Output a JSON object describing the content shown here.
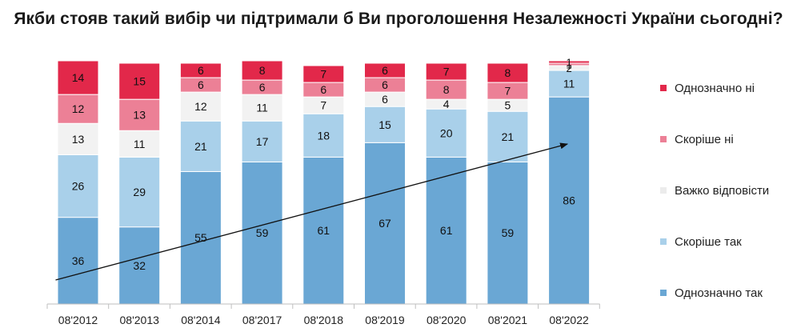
{
  "title": "Якби стояв такий вибір чи підтримали б Ви проголошення Незалежності України сьогодні?",
  "colors": {
    "axis": "#bfbfbf",
    "arrow": "#111111"
  },
  "chart_data": {
    "type": "bar",
    "stacked": true,
    "categories": [
      "08'2012",
      "08'2013",
      "08'2014",
      "08'2017",
      "08'2018",
      "08'2019",
      "08'2020",
      "08'2021",
      "08'2022"
    ],
    "series": [
      {
        "name": "Однозначно так",
        "color": "#6aa7d4",
        "values": [
          36,
          32,
          55,
          59,
          61,
          67,
          61,
          59,
          86
        ]
      },
      {
        "name": "Скоріше так",
        "color": "#a9d0ea",
        "values": [
          26,
          29,
          21,
          17,
          18,
          15,
          20,
          21,
          11
        ]
      },
      {
        "name": "Важко відповісти",
        "color": "#f2f2f2",
        "values": [
          13,
          11,
          12,
          11,
          7,
          6,
          4,
          5,
          2
        ]
      },
      {
        "name": "Скоріше ні",
        "color": "#ec8096",
        "values": [
          12,
          13,
          6,
          6,
          6,
          6,
          8,
          7,
          1
        ]
      },
      {
        "name": "Однозначно ні",
        "color": "#e2284a",
        "values": [
          14,
          15,
          6,
          8,
          7,
          6,
          7,
          8,
          1
        ]
      }
    ],
    "legend_order": [
      "Однозначно ні",
      "Скоріше ні",
      "Важко відповісти",
      "Скоріше так",
      "Однозначно так"
    ],
    "legend_position": "right",
    "ylim": [
      0,
      100
    ],
    "trend_arrow": {
      "from_category": "08'2012",
      "to_category": "08'2022"
    },
    "grid": false
  }
}
